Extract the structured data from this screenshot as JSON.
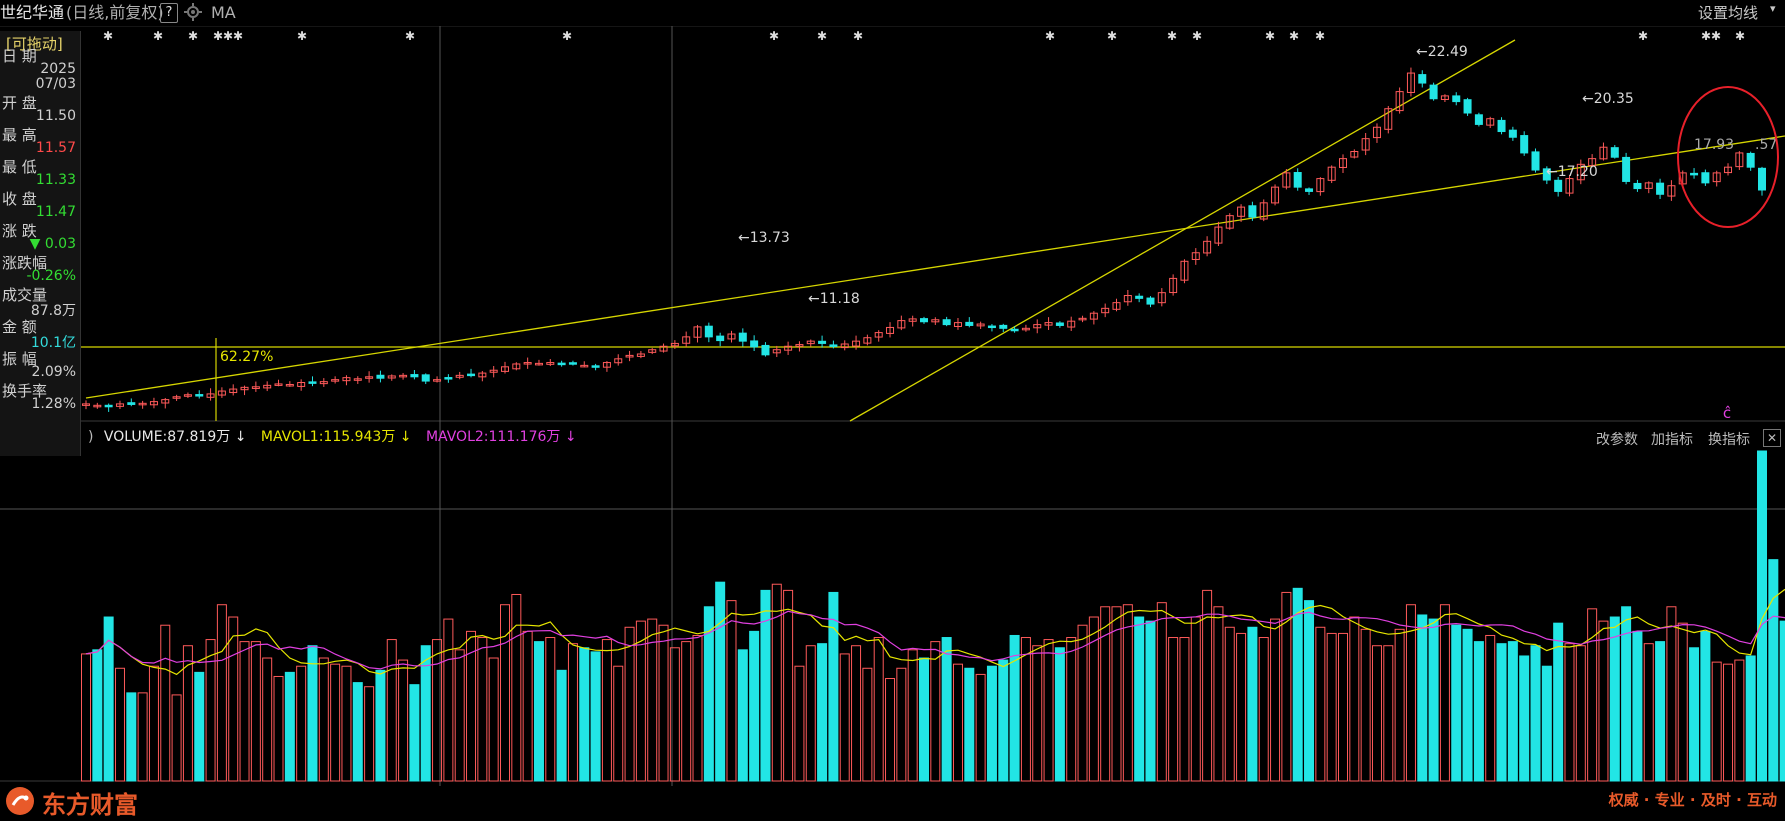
{
  "window": {
    "stock_name": "世纪华通",
    "period_mode": "(日线,前复权)",
    "help_label": "?",
    "indicator": "MA",
    "ma_settings": "设置均线"
  },
  "info_panel": {
    "draggable": "[可拖动]",
    "rows": [
      {
        "label": "日  期",
        "value": "2025",
        "value2": "07/03",
        "color": "#d0d0d0"
      },
      {
        "label": "开  盘",
        "value": "11.50",
        "color": "#d0d0d0"
      },
      {
        "label": "最  高",
        "value": "11.57",
        "color": "#ff4a4a"
      },
      {
        "label": "最  低",
        "value": "11.33",
        "color": "#33dd33"
      },
      {
        "label": "收  盘",
        "value": "11.47",
        "color": "#33dd33"
      },
      {
        "label": "涨  跌",
        "value": "▼ 0.03",
        "color": "#33dd33"
      },
      {
        "label": "涨跌幅",
        "value": "-0.26%",
        "color": "#33dd33"
      },
      {
        "label": "成交量",
        "value": "87.8万",
        "color": "#d0d0d0"
      },
      {
        "label": "金  额",
        "value": "10.1亿",
        "color": "#33dddd"
      },
      {
        "label": "振  幅",
        "value": "2.09%",
        "color": "#d0d0d0"
      },
      {
        "label": "换手率",
        "value": "1.28%",
        "color": "#d0d0d0"
      }
    ]
  },
  "price_annotations": {
    "high_22_49": "22.49",
    "high_20_35": "20.35",
    "low_17_20": "17.20",
    "high_13_73": "13.73",
    "low_11_18": "11.18",
    "val_17_93": "17.93",
    "val_57": ".57",
    "pct_62": "62.27%",
    "event_mark": "ĉ"
  },
  "volume_legend": {
    "prefix": ")",
    "volume": "VOLUME:87.819万",
    "mavol1": "MAVOL1:115.943万",
    "mavol2": "MAVOL2:111.176万",
    "arrow": "↓",
    "tools": [
      "改参数",
      "加指标",
      "换指标"
    ],
    "close": "✕"
  },
  "brand": {
    "name": "东方财富",
    "slogan": "权威 · 专业 · 及时 · 互动"
  },
  "colors": {
    "up": "#ff5a5a",
    "down": "#22e5e5",
    "ma1": "#e6e600",
    "ma2": "#e040e0",
    "trend": "#d6d600",
    "circle": "#e8202a"
  },
  "chart_data": [
    {
      "type": "candlestick",
      "title": "世纪华通 (日线,前复权)",
      "ylim": [
        10.0,
        23.5
      ],
      "annotations": [
        {
          "label": "22.49",
          "kind": "high"
        },
        {
          "label": "20.35",
          "kind": "high"
        },
        {
          "label": "17.20",
          "kind": "low"
        },
        {
          "label": "13.73",
          "kind": "high"
        },
        {
          "label": "11.18",
          "kind": "low"
        }
      ],
      "closes": [
        10.6,
        10.55,
        10.5,
        10.6,
        10.58,
        10.62,
        10.68,
        10.75,
        10.85,
        10.92,
        10.88,
        10.95,
        11.05,
        11.12,
        11.18,
        11.2,
        11.25,
        11.3,
        11.28,
        11.35,
        11.32,
        11.38,
        11.45,
        11.52,
        11.48,
        11.55,
        11.5,
        11.58,
        11.6,
        11.55,
        11.4,
        11.45,
        11.52,
        11.6,
        11.62,
        11.68,
        11.78,
        11.9,
        12.0,
        12.05,
        12.02,
        12.05,
        12.0,
        12.02,
        11.95,
        11.9,
        12.05,
        12.18,
        12.3,
        12.35,
        12.5,
        12.62,
        12.72,
        12.95,
        13.3,
        12.95,
        12.82,
        13.05,
        12.8,
        12.6,
        12.32,
        12.5,
        12.62,
        12.68,
        12.8,
        12.72,
        12.62,
        12.7,
        12.8,
        12.92,
        13.1,
        13.28,
        13.52,
        13.58,
        13.48,
        13.55,
        13.38,
        13.45,
        13.35,
        13.4,
        13.3,
        13.25,
        13.18,
        13.25,
        13.38,
        13.45,
        13.35,
        13.5,
        13.6,
        13.78,
        13.95,
        14.15,
        14.4,
        14.3,
        14.1,
        14.5,
        15.0,
        15.6,
        15.9,
        16.3,
        16.8,
        17.2,
        17.5,
        17.15,
        17.65,
        18.2,
        18.7,
        18.2,
        18.05,
        18.5,
        18.9,
        19.2,
        19.45,
        19.9,
        20.3,
        20.95,
        21.55,
        22.2,
        21.85,
        21.3,
        21.4,
        21.2,
        20.8,
        20.4,
        20.6,
        20.15,
        19.95,
        19.4,
        18.8,
        18.45,
        18.05,
        18.5,
        19.0,
        19.2,
        19.6,
        19.25,
        18.4,
        18.15,
        18.35,
        17.95,
        18.25,
        18.7,
        18.65,
        18.35,
        18.7,
        18.9,
        19.4,
        18.9,
        18.1
      ],
      "volume": {
        "mavol1": "115.943万",
        "mavol2": "111.176万",
        "values": [
          62,
          64,
          80,
          55,
          43,
          43,
          56,
          76,
          42,
          66,
          53,
          69,
          86,
          80,
          68,
          68,
          60,
          51,
          53,
          56,
          66,
          60,
          57,
          56,
          48,
          46,
          54,
          69,
          59,
          47,
          66,
          69,
          79,
          64,
          73,
          70,
          60,
          86,
          91,
          73,
          68,
          70,
          54,
          67,
          65,
          63,
          69,
          56,
          75,
          78,
          79,
          76,
          65,
          68,
          71,
          85,
          97,
          88,
          64,
          73,
          93,
          96,
          93,
          56,
          66,
          67,
          92,
          62,
          66,
          55,
          70,
          50,
          55,
          64,
          60,
          68,
          70,
          57,
          55,
          52,
          56,
          59,
          71,
          70,
          66,
          69,
          65,
          70,
          76,
          80,
          85,
          85,
          86,
          80,
          78,
          87,
          70,
          70,
          80,
          93,
          85,
          75,
          72,
          75,
          70,
          79,
          92,
          94,
          88,
          75,
          72,
          72,
          80,
          74,
          66,
          66,
          74,
          86,
          81,
          79,
          86,
          76,
          74,
          68,
          71,
          67,
          68,
          61,
          66,
          56,
          77,
          67,
          66,
          84,
          78,
          80,
          85,
          73,
          67,
          68,
          85,
          77,
          65,
          73,
          58,
          57,
          59,
          61,
          161,
          108,
          78,
          49
        ]
      }
    }
  ]
}
